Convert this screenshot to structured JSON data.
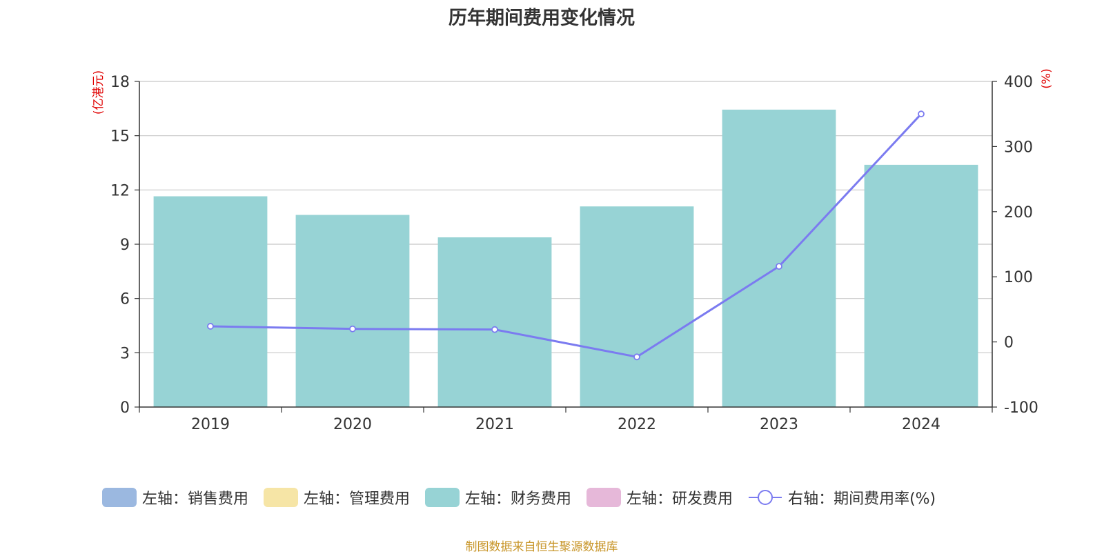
{
  "title": "历年期间费用变化情况",
  "source_note": "制图数据来自恒生聚源数据库",
  "colors": {
    "sales": "#9bb8e0",
    "admin": "#f6e5a6",
    "finance": "#97d3d5",
    "rd": "#e6b8d9",
    "ratio_line": "#7b7bf0",
    "axis_unit": "#e00000"
  },
  "legend": [
    {
      "label": "左轴：销售费用",
      "type": "bar",
      "color": "#9bb8e0"
    },
    {
      "label": "左轴：管理费用",
      "type": "bar",
      "color": "#f6e5a6"
    },
    {
      "label": "左轴：财务费用",
      "type": "bar",
      "color": "#97d3d5"
    },
    {
      "label": "左轴：研发费用",
      "type": "bar",
      "color": "#e6b8d9"
    },
    {
      "label": "右轴：期间费用率(%)",
      "type": "line",
      "color": "#7b7bf0"
    }
  ],
  "chart_data": {
    "type": "bar",
    "title": "历年期间费用变化情况",
    "categories": [
      "2019",
      "2020",
      "2021",
      "2022",
      "2023",
      "2024"
    ],
    "y_left_label": "(亿港元)",
    "y_right_label": "(%)",
    "y_left_range": [
      0,
      18
    ],
    "y_left_ticks": [
      0,
      3,
      6,
      9,
      12,
      15,
      18
    ],
    "y_right_range": [
      -100,
      400
    ],
    "y_right_ticks": [
      -100,
      0,
      100,
      200,
      300,
      400
    ],
    "grid": true,
    "legend_position": "bottom",
    "series": [
      {
        "name": "左轴：财务费用",
        "type": "bar",
        "axis": "left",
        "color": "#97d3d5",
        "values": [
          11.65,
          10.62,
          9.38,
          11.09,
          16.44,
          13.39
        ]
      },
      {
        "name": "右轴：期间费用率(%)",
        "type": "line",
        "axis": "right",
        "color": "#7b7bf0",
        "values": [
          24,
          20,
          19,
          -23,
          116,
          350
        ]
      }
    ]
  }
}
